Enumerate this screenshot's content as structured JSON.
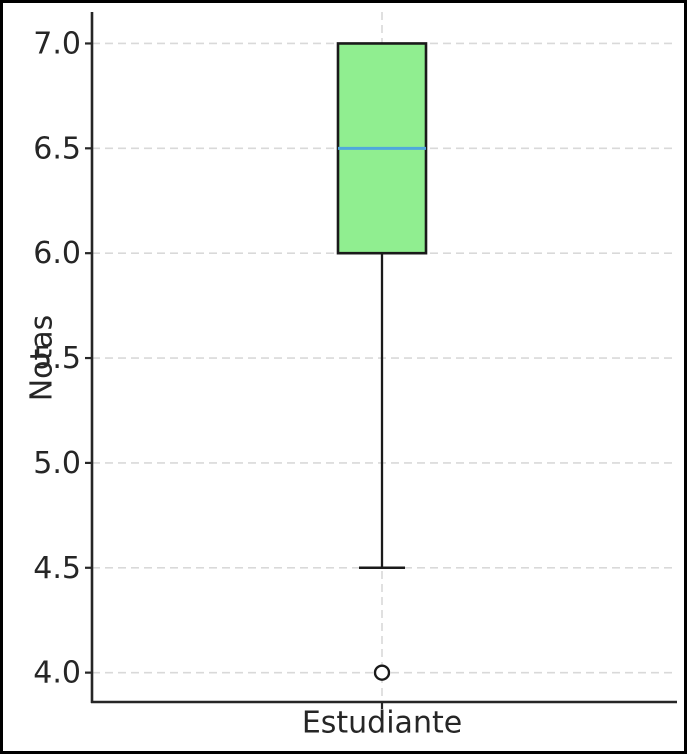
{
  "figure": {
    "background": "#ffffff",
    "frame_color": "#000000"
  },
  "chart_data": {
    "type": "boxplot",
    "title": "",
    "xlabel": "",
    "ylabel": "Notas",
    "categories": [
      "Estudiante"
    ],
    "series": [
      {
        "name": "Estudiante",
        "whisker_low": 4.5,
        "q1": 6.0,
        "median": 6.5,
        "q3": 7.0,
        "whisker_high": 7.0,
        "outliers": [
          4.0
        ]
      }
    ],
    "yticks": [
      4.0,
      4.5,
      5.0,
      5.5,
      6.0,
      6.5,
      7.0
    ],
    "ytick_labels": [
      "4.0",
      "4.5",
      "5.0",
      "5.5",
      "6.0",
      "6.5",
      "7.0"
    ],
    "ylim": [
      3.86,
      7.15
    ],
    "grid": "dashed",
    "legend": "none",
    "colors": {
      "box_fill": "#90EE90",
      "box_edge": "#1a1a1a",
      "median": "#4FA8DC",
      "whisker": "#1a1a1a",
      "grid": "#d9d9d9",
      "axis": "#262626",
      "text": "#262626"
    }
  }
}
